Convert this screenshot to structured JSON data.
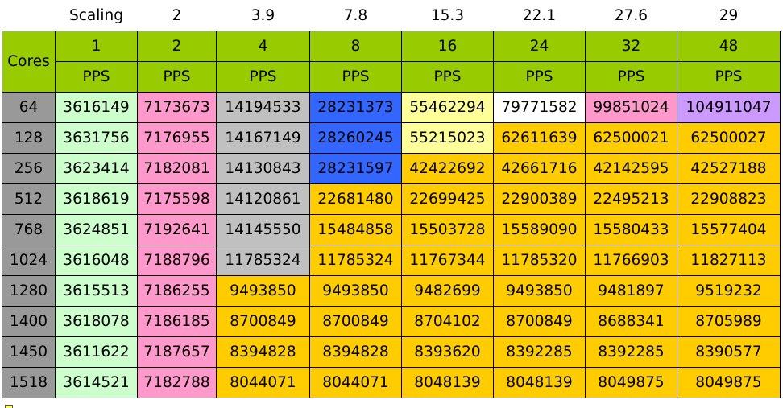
{
  "scaling_label": "Scaling",
  "scaling_values": [
    "2",
    "3.9",
    "7.8",
    "15.3",
    "22.1",
    "27.6",
    "29"
  ],
  "cores_label": "Cores",
  "thread_counts": [
    "1",
    "2",
    "4",
    "8",
    "16",
    "24",
    "32",
    "48"
  ],
  "unit_label": "PPS",
  "rows": [
    {
      "cores": "64",
      "values": [
        "3616149",
        "7173673",
        "14194533",
        "28231373",
        "55462294",
        "79771582",
        "99851024",
        "104911047"
      ]
    },
    {
      "cores": "128",
      "values": [
        "3631756",
        "7176955",
        "14167149",
        "28260245",
        "55215023",
        "62611639",
        "62500021",
        "62500027"
      ]
    },
    {
      "cores": "256",
      "values": [
        "3623414",
        "7182081",
        "14130843",
        "28231597",
        "42422692",
        "42661716",
        "42142595",
        "42527188"
      ]
    },
    {
      "cores": "512",
      "values": [
        "3618619",
        "7175598",
        "14120861",
        "22681480",
        "22699425",
        "22900389",
        "22495213",
        "22908823"
      ]
    },
    {
      "cores": "768",
      "values": [
        "3624851",
        "7192641",
        "14145550",
        "15484858",
        "15503728",
        "15589090",
        "15580433",
        "15577404"
      ]
    },
    {
      "cores": "1024",
      "values": [
        "3616048",
        "7188796",
        "11785324",
        "11785324",
        "11767344",
        "11785320",
        "11766903",
        "11827113"
      ]
    },
    {
      "cores": "1280",
      "values": [
        "3615513",
        "7186255",
        "9493850",
        "9493850",
        "9482699",
        "9493850",
        "9481897",
        "9519232"
      ]
    },
    {
      "cores": "1400",
      "values": [
        "3618078",
        "7186185",
        "8700849",
        "8700849",
        "8704102",
        "8700849",
        "8688341",
        "8705989"
      ]
    },
    {
      "cores": "1450",
      "values": [
        "3611622",
        "7187657",
        "8394828",
        "8394828",
        "8393620",
        "8392285",
        "8392285",
        "8390577"
      ]
    },
    {
      "cores": "1518",
      "values": [
        "3614521",
        "7182788",
        "8044071",
        "8044071",
        "8048139",
        "8048139",
        "8049875",
        "8049875"
      ]
    }
  ],
  "cell_colors": [
    [
      "green",
      "pink",
      "gray",
      "blue",
      "yellow",
      "white",
      "pink",
      "purple"
    ],
    [
      "green",
      "pink",
      "gray",
      "blue",
      "yellow",
      "orange",
      "orange",
      "orange"
    ],
    [
      "green",
      "pink",
      "gray",
      "blue",
      "orange",
      "orange",
      "orange",
      "orange"
    ],
    [
      "green",
      "pink",
      "gray",
      "orange",
      "orange",
      "orange",
      "orange",
      "orange"
    ],
    [
      "green",
      "pink",
      "gray",
      "orange",
      "orange",
      "orange",
      "orange",
      "orange"
    ],
    [
      "green",
      "pink",
      "gray",
      "orange",
      "orange",
      "orange",
      "orange",
      "orange"
    ],
    [
      "green",
      "pink",
      "orange",
      "orange",
      "orange",
      "orange",
      "orange",
      "orange"
    ],
    [
      "green",
      "pink",
      "orange",
      "orange",
      "orange",
      "orange",
      "orange",
      "orange"
    ],
    [
      "green",
      "pink",
      "orange",
      "orange",
      "orange",
      "orange",
      "orange",
      "orange"
    ],
    [
      "green",
      "pink",
      "orange",
      "orange",
      "orange",
      "orange",
      "orange",
      "orange"
    ]
  ],
  "palette": {
    "header": "#99cc00",
    "cores": "#999999",
    "green": "#ccffcc",
    "pink": "#ff99cc",
    "gray": "#c0c0c0",
    "blue": "#3366ff",
    "yellow": "#ffff99",
    "white": "#ffffff",
    "orange": "#ffcc00",
    "purple": "#cc99ff"
  }
}
